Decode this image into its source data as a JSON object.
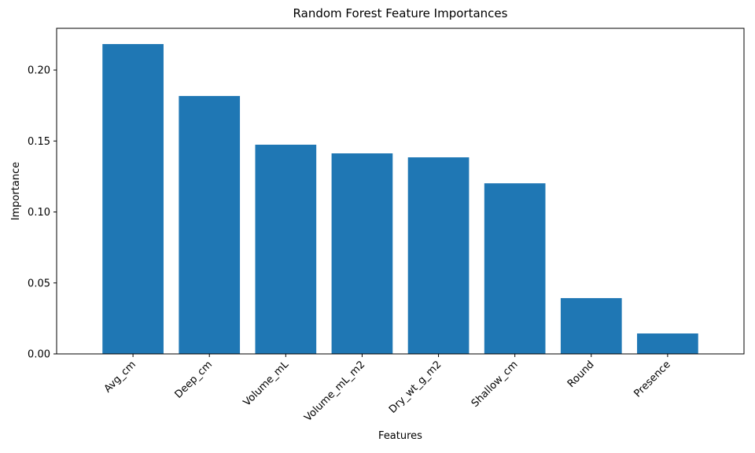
{
  "chart_data": {
    "type": "bar",
    "title": "Random Forest Feature Importances",
    "x_label": "Features",
    "y_label": "Importance",
    "categories": [
      "Avg_cm",
      "Deep_cm",
      "Volume_mL",
      "Volume_mL_m2",
      "Dry_wt_g_m2",
      "Shallow_cm",
      "Round",
      "Presence"
    ],
    "values": [
      0.2183,
      0.1817,
      0.1474,
      0.1413,
      0.1385,
      0.1202,
      0.0393,
      0.0144
    ],
    "color": "#1f77b4",
    "ylim": [
      0,
      0.2294
    ],
    "yticks": [
      {
        "value": 0,
        "label": "0.00"
      },
      {
        "value": 0.05,
        "label": "0.05"
      },
      {
        "value": 0.1,
        "label": "0.10"
      },
      {
        "value": 0.15,
        "label": "0.15"
      },
      {
        "value": 0.2,
        "label": "0.20"
      }
    ],
    "grid": false
  }
}
